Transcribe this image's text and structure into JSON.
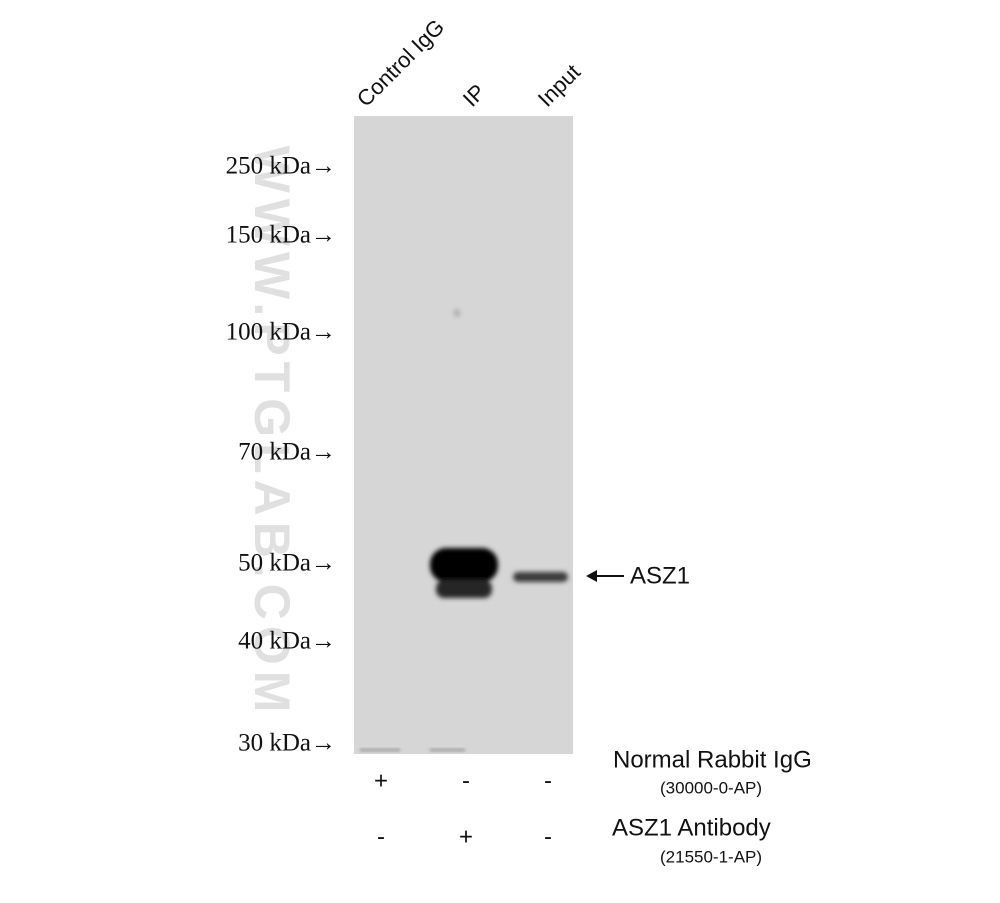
{
  "lanes": [
    "Control IgG",
    "IP",
    "Input"
  ],
  "markers": [
    "250 kDa→",
    "150 kDa→",
    "100 kDa→",
    "70 kDa→",
    "50 kDa→",
    "40 kDa→",
    "30 kDa→"
  ],
  "watermark": "WWW.PTGLAB.COM",
  "band_label": "ASZ1",
  "rows": [
    {
      "name": "Normal Rabbit IgG",
      "catalog": "(30000-0-AP)",
      "signs": [
        "+",
        "-",
        "-"
      ]
    },
    {
      "name": "ASZ1 Antibody",
      "catalog": "(21550-1-AP)",
      "signs": [
        "-",
        "+",
        "-"
      ]
    }
  ]
}
